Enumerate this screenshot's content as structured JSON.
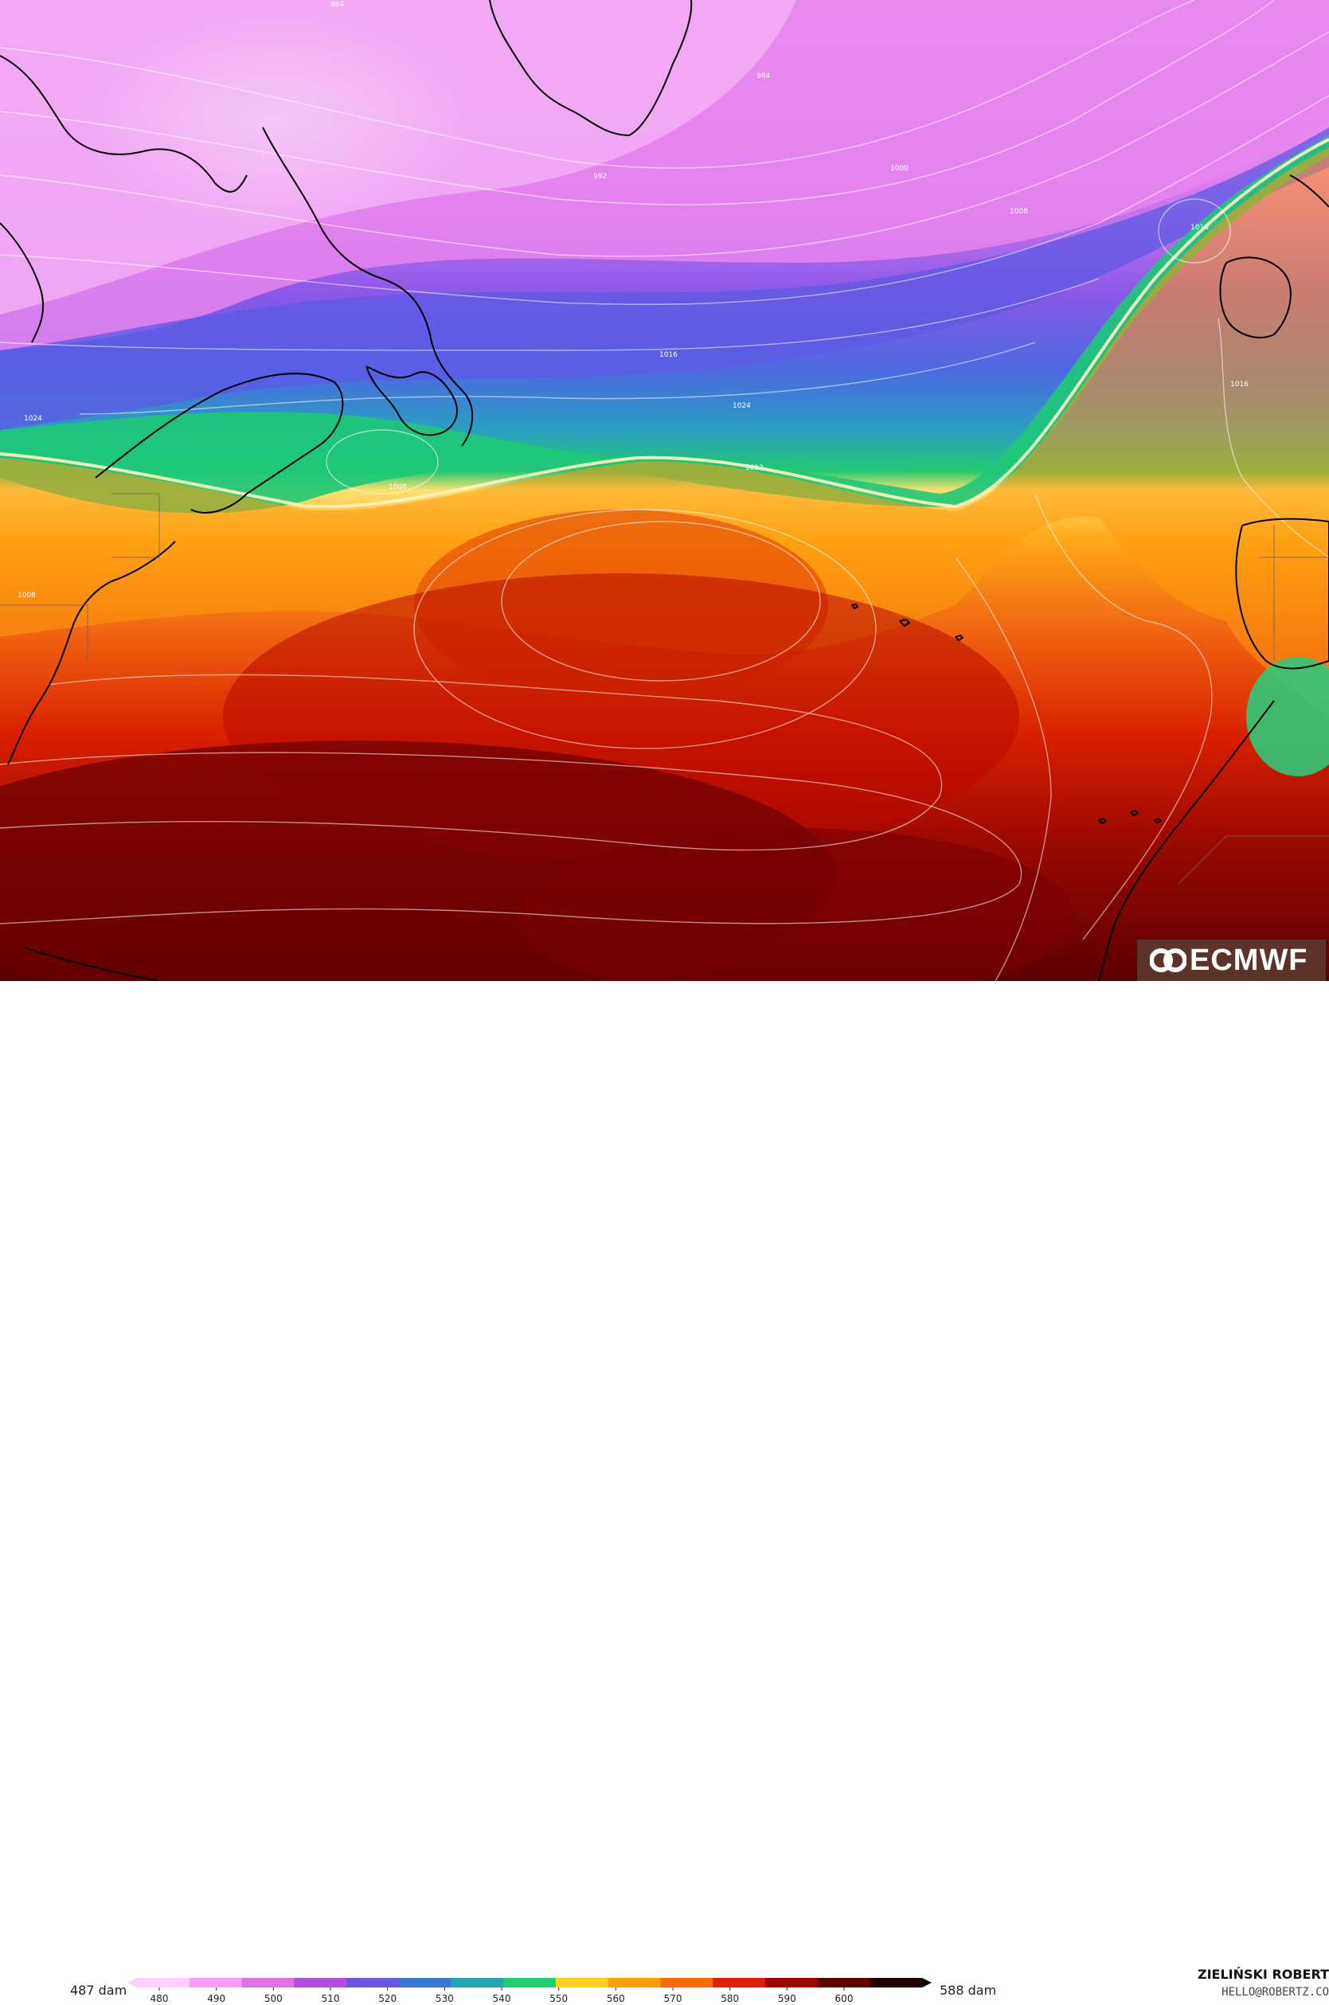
{
  "map": {
    "isobar_labels": [
      "984",
      "992",
      "1000",
      "1008",
      "1016",
      "1024",
      "1008",
      "1016",
      "1016",
      "1024",
      "1008",
      "1012",
      "984"
    ]
  },
  "logo": {
    "text": "ECMWF"
  },
  "legend": {
    "min_label": "487 dam",
    "max_label": "588 dam",
    "ticks": [
      "480",
      "490",
      "500",
      "510",
      "520",
      "530",
      "540",
      "550",
      "560",
      "570",
      "580",
      "590",
      "600"
    ],
    "colors": [
      "#ffd0ff",
      "#f4a0f4",
      "#e070e8",
      "#b050e0",
      "#6a58e0",
      "#3a78d8",
      "#20a8b0",
      "#20d070",
      "#ffd020",
      "#ffa000",
      "#ff6a00",
      "#e02000",
      "#a00000",
      "#600000",
      "#200000"
    ]
  },
  "credit": {
    "name": "ZIELIŃSKI ROBERT",
    "email": "HELLO@ROBERTZ.CO"
  }
}
